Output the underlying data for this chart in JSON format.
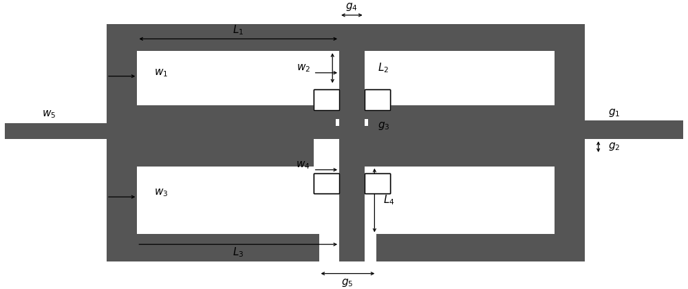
{
  "bg": "#ffffff",
  "metal": "#555555",
  "fig_w": 10.0,
  "fig_h": 4.2,
  "dpi": 100,
  "IW": 1000,
  "IH": 420,
  "label_fs": 11
}
